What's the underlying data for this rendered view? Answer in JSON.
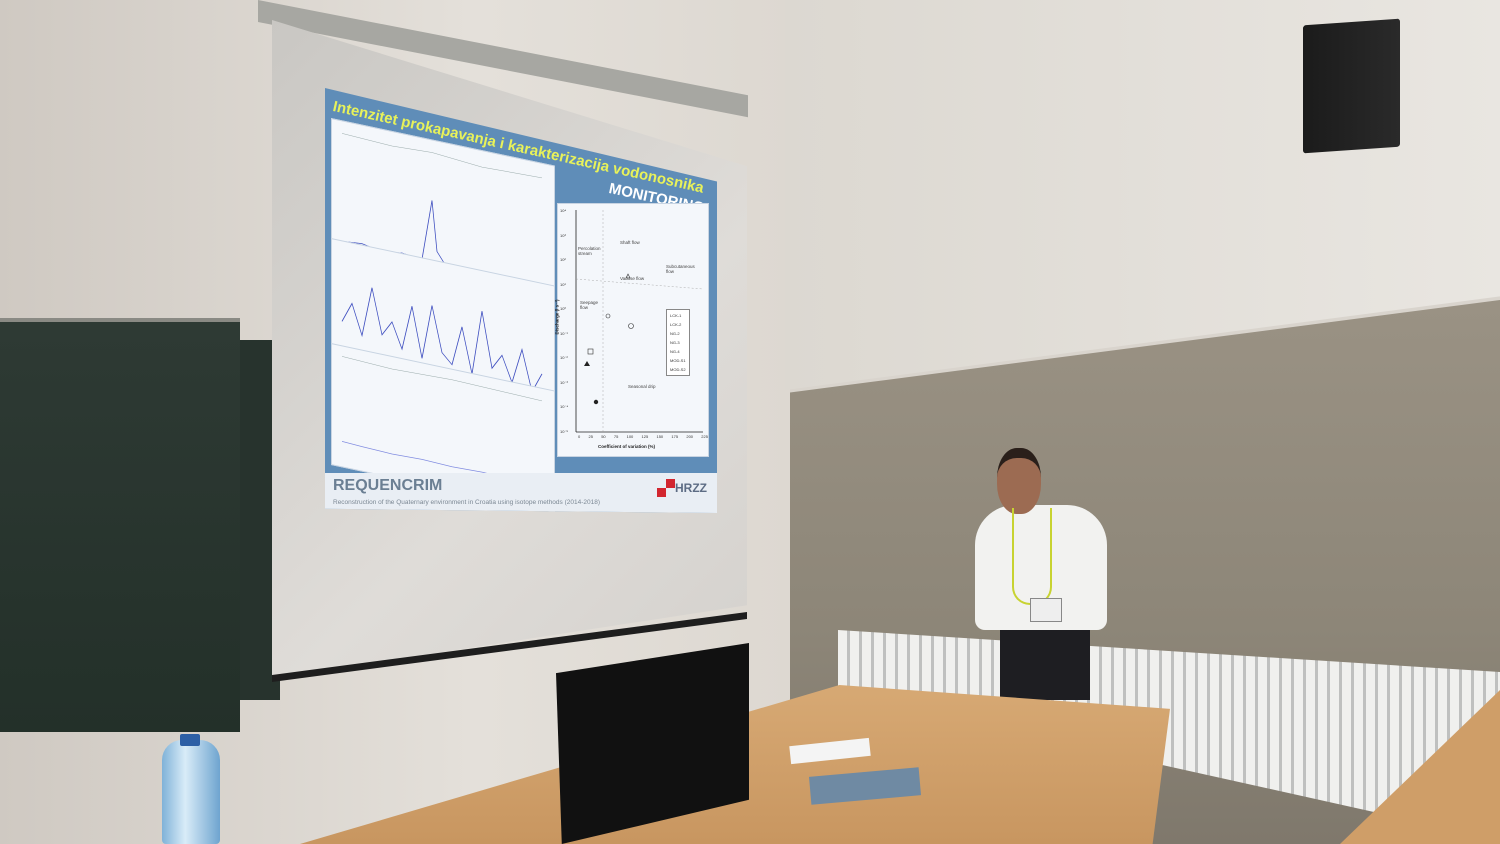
{
  "slide": {
    "title": "Intenzitet prokapavanja i karakterizacija vodonosnika",
    "section_label": "MONITORING",
    "project_name": "REQUENCRIM",
    "project_subtitle": "Reconstruction of the Quaternary environment in Croatia using isotope methods (2014-2018)",
    "funder_logo_text": "HRZZ",
    "scatter": {
      "xlabel": "Coefficient of variation (%)",
      "ylabel": "Discharge (l s⁻¹)",
      "x_ticks": [
        "0",
        "25",
        "50",
        "75",
        "100",
        "125",
        "150",
        "175",
        "200",
        "225"
      ],
      "y_ticks": [
        "10⁴",
        "10³",
        "10²",
        "10¹",
        "10⁰",
        "10⁻¹",
        "10⁻²",
        "10⁻³",
        "10⁻⁴",
        "10⁻⁵"
      ],
      "regions": [
        "Percolation stream",
        "Shaft flow",
        "Subcutaneous flow",
        "Vadose flow",
        "Seepage flow",
        "Seasonal drip"
      ],
      "legend": [
        "LCK-1",
        "LCK-2",
        "NG-2",
        "NG-3",
        "NG-4",
        "MOD-S1",
        "MOD-S2"
      ]
    }
  },
  "colors": {
    "slide_bg": "#5f8db8",
    "title": "#e8f25a",
    "series": "#3f4fc0",
    "hrzz_red": "#d2262f"
  }
}
